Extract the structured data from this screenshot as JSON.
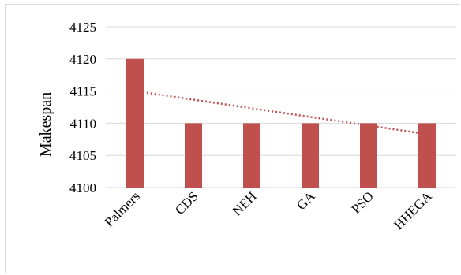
{
  "chart_data": {
    "type": "bar",
    "title": "",
    "xlabel": "",
    "ylabel": "Makespan",
    "categories": [
      "Palmers",
      "CDS",
      "NEH",
      "GA",
      "PSO",
      "HHEGA"
    ],
    "values": [
      4120,
      4110,
      4110,
      4110,
      4110,
      4110
    ],
    "ylim": [
      4100,
      4125
    ],
    "yticks": [
      4100,
      4105,
      4110,
      4115,
      4120,
      4125
    ],
    "grid": true,
    "legend": "none",
    "trendline": {
      "type": "linear",
      "style": "dotted",
      "from": 4115,
      "to": 4108.3
    },
    "colors": {
      "bar": "#c0504d",
      "trendline": "#c0504d",
      "grid": "#d9d9d9"
    }
  }
}
